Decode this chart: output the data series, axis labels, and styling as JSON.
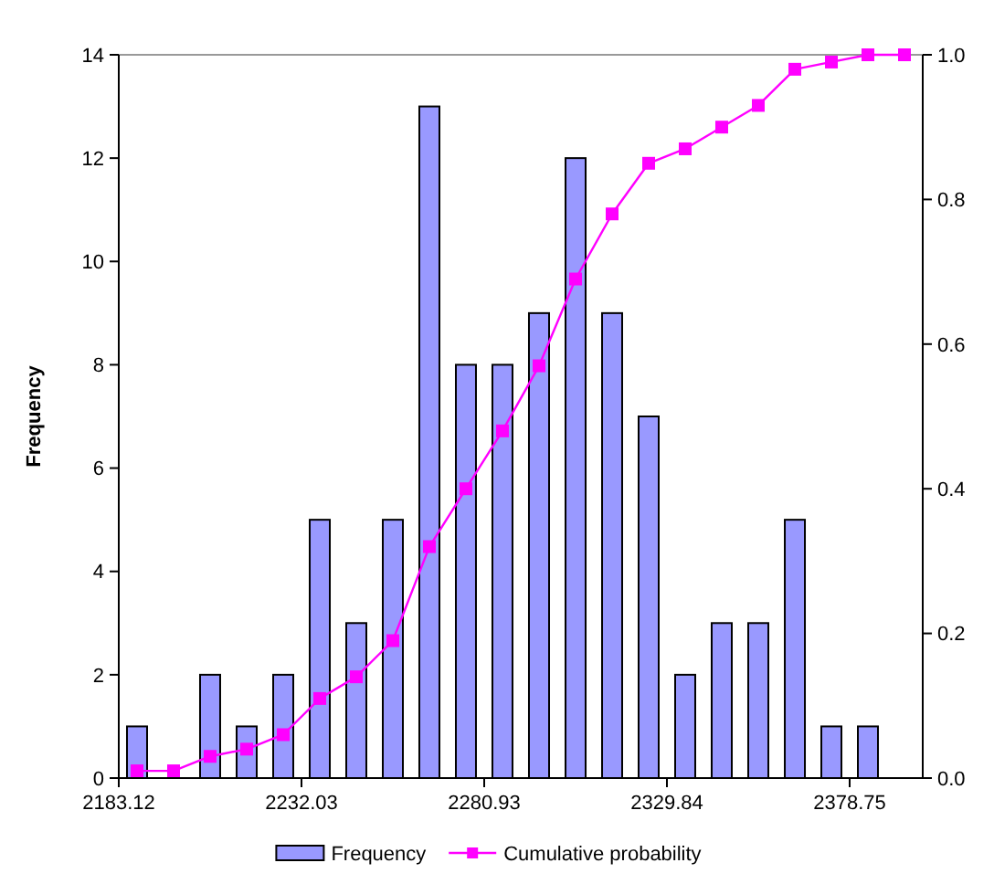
{
  "chart_data": {
    "type": "histogram",
    "ylabel": "Frequency",
    "bins": [
      2183.12,
      2192.9,
      2202.68,
      2212.46,
      2222.25,
      2232.03,
      2241.81,
      2251.59,
      2261.37,
      2271.15,
      2280.93,
      2290.71,
      2300.5,
      2310.28,
      2320.06,
      2329.84,
      2339.62,
      2349.4,
      2359.19,
      2368.97,
      2378.75,
      2388.53,
      2398.31
    ],
    "series": [
      {
        "name": "Frequency",
        "color": "#9999ff",
        "values": [
          1,
          0,
          2,
          1,
          2,
          5,
          3,
          5,
          13,
          8,
          8,
          9,
          12,
          9,
          7,
          2,
          3,
          3,
          5,
          1,
          1,
          0
        ]
      },
      {
        "name": "Cumulative probability",
        "type": "line",
        "axis": "y2",
        "color": "#ff00ff",
        "marker": "square",
        "x": [
          2188.01,
          2197.79,
          2207.57,
          2217.36,
          2227.14,
          2236.92,
          2246.7,
          2256.48,
          2266.26,
          2276.04,
          2285.82,
          2295.61,
          2305.39,
          2315.17,
          2324.95,
          2334.73,
          2344.51,
          2354.29,
          2364.08,
          2373.86,
          2383.64,
          2393.42
        ],
        "values": [
          0.01,
          0.01,
          0.03,
          0.04,
          0.06,
          0.11,
          0.14,
          0.19,
          0.32,
          0.4,
          0.48,
          0.57,
          0.69,
          0.78,
          0.85,
          0.87,
          0.9,
          0.93,
          0.98,
          0.99,
          1.0,
          1.0
        ]
      }
    ],
    "xlim": [
      2183.12,
      2398.31
    ],
    "xticks": [
      2183.12,
      2232.03,
      2280.93,
      2329.84,
      2378.75
    ],
    "ylim": [
      0,
      14
    ],
    "yticks": [
      0,
      2,
      4,
      6,
      8,
      10,
      12,
      14
    ],
    "y2lim": [
      0,
      1
    ],
    "y2ticks": [
      {
        "value": 0,
        "label": "0.0"
      },
      {
        "value": 0.2,
        "label": "0.2"
      },
      {
        "value": 0.4,
        "label": "0.4"
      },
      {
        "value": 0.6,
        "label": "0.6"
      },
      {
        "value": 0.8,
        "label": "0.8"
      },
      {
        "value": 1,
        "label": "1.0"
      }
    ],
    "grid": false,
    "legend": "bottom"
  }
}
